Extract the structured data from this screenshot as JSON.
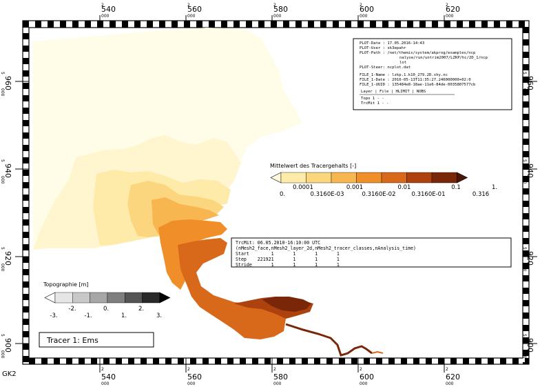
{
  "frame": {
    "x_ticks": [
      {
        "top": "2",
        "main": "540",
        "sub": "000"
      },
      {
        "top": "2",
        "main": "560",
        "sub": "000"
      },
      {
        "top": "2",
        "main": "580",
        "sub": "000"
      },
      {
        "top": "2",
        "main": "600",
        "sub": "000"
      },
      {
        "top": "2",
        "main": "620",
        "sub": "000"
      }
    ],
    "y_ticks": [
      {
        "top": "5",
        "main": "960",
        "sub": "000"
      },
      {
        "top": "5",
        "main": "940",
        "sub": "000"
      },
      {
        "top": "5",
        "main": "920",
        "sub": "000"
      },
      {
        "top": "5",
        "main": "900",
        "sub": "000"
      }
    ],
    "projection_label": "GK2"
  },
  "info_box": {
    "plot_date": "PLOT-Date : 17.05.2016-14:43",
    "plot_user": "PLOT-User : sk3epahr",
    "plot_path_1": "PLOT-Path : /net/themis/system/akprog/examples/ncp",
    "plot_path_2": "nalyse/run/untrim2007/LZKP/hc/2D_1/ncp",
    "plot_path_3": "lot",
    "plot_steer": "PLOT-Steer: ncplot.dat",
    "file_name": "FILE_1-Name : lzkp.1.k10_279.2D.shy.nc",
    "file_date": "FILE_1-Date : 2016-05-13T11:35:27.246000000+02:0",
    "file_uuid": "FILE_1-UUID : 135484e8-18ae-11e6-84de-0035807577cb",
    "table_header": "Layer | File | HLIMIT | NOBS",
    "row_topo": "Topo      1      -       -",
    "row_trcmit": "TrcMit    1      -       -"
  },
  "tracer_legend": {
    "title": "Mittelwert des Tracergehalts [-]",
    "colors": [
      "#fff8dc",
      "#feeba9",
      "#fcd67f",
      "#f8b650",
      "#f08f2a",
      "#d8691b",
      "#ad420f",
      "#7a2608",
      "#4a1503"
    ],
    "labels_upper": [
      "0.0001",
      "0.001",
      "0.01",
      "0.1",
      "1."
    ],
    "labels_lower": [
      "0.",
      "0.3160E-03",
      "0.3160E-02",
      "0.3160E-01",
      "0.316"
    ]
  },
  "topo_legend": {
    "title": "Topographie [m]",
    "colors": [
      "#ffffff",
      "#e6e6e6",
      "#c8c8c8",
      "#a6a6a6",
      "#7e7e7e",
      "#545454",
      "#2a2a2a",
      "#000000"
    ],
    "labels_upper": [
      "-2.",
      "0.",
      "2."
    ],
    "labels_lower": [
      "-3.",
      "-1.",
      "1.",
      "3."
    ]
  },
  "time_box": {
    "line1": "TrcMit: 06.05.2010-16:10:00 UTC",
    "line2": "(nMesh2_face,nMesh2_layer_2d,nMesh2_tracer_classes,nAnalysis_time)",
    "line3": "Start        1       1       1       1",
    "line4": "Step    221921       1       1       1",
    "line5": "Stride       1       1       1       1"
  },
  "tracer_label": "Tracer 1: Ems"
}
